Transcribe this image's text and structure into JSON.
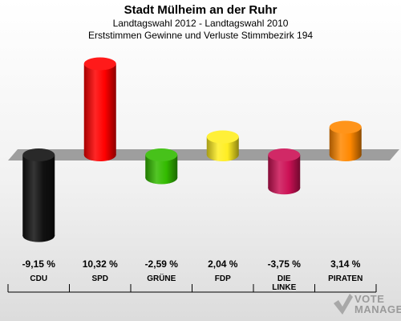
{
  "header": {
    "title": "Stadt Mülheim an der Ruhr",
    "subtitle": "Landtagswahl 2012 - Landtagswahl 2010",
    "description": "Erststimmen Gewinne und Verluste Stimmbezirk 194"
  },
  "chart_data": {
    "type": "bar",
    "categories": [
      "CDU",
      "SPD",
      "GRÜNE",
      "FDP",
      "DIE LINKE",
      "PIRATEN"
    ],
    "values": [
      -9.15,
      10.32,
      -2.59,
      2.04,
      -3.75,
      3.14
    ],
    "value_labels": [
      "-9,15 %",
      "10,32 %",
      "-2,59 %",
      "2,04 %",
      "-3,75 %",
      "3,14 %"
    ],
    "colors": [
      "#111111",
      "#ff0000",
      "#33bb00",
      "#ffee22",
      "#cc1155",
      "#ff8800"
    ],
    "title": "Stadt Mülheim an der Ruhr",
    "subtitle": "Landtagswahl 2012 - Landtagswahl 2010",
    "ylim": [
      -10.5,
      11.5
    ],
    "grid": false,
    "legend": "none"
  },
  "watermark": {
    "text_line1": "VOTE",
    "text_line2": "MANAGER"
  }
}
